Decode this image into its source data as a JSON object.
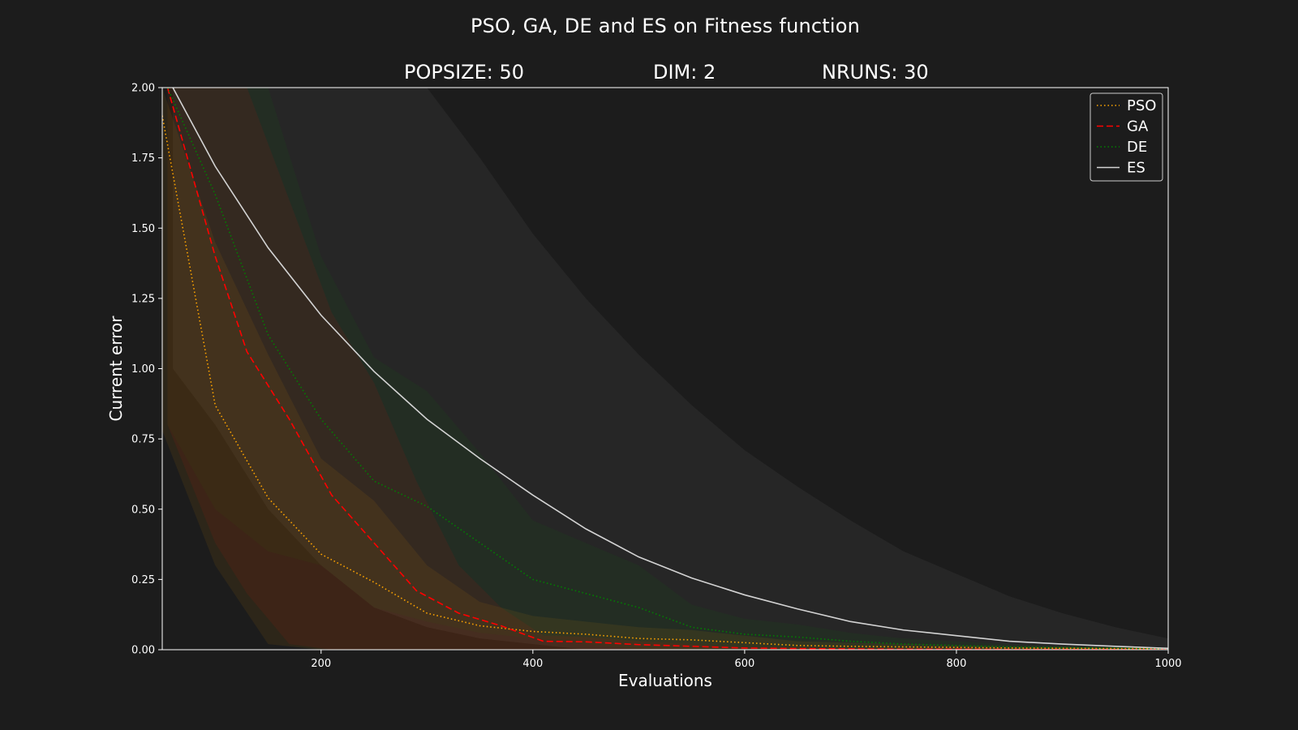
{
  "title": "PSO, GA, DE and ES on Fitness function",
  "stats": {
    "popsize": "POPSIZE: 50",
    "dim": "DIM: 2",
    "nruns": "NRUNS: 30"
  },
  "colors": {
    "background": "#1c1c1c",
    "axes": "#ffffff",
    "PSO": "#ffa500",
    "GA": "#ff0000",
    "DE": "#008000",
    "ES": "#d3d3d3"
  },
  "chart_data": {
    "type": "line",
    "xlabel": "Evaluations",
    "ylabel": "Current error",
    "xlim": [
      50,
      1000
    ],
    "ylim": [
      0,
      2.0
    ],
    "xticks": [
      200,
      400,
      600,
      800,
      1000
    ],
    "yticks": [
      0.0,
      0.25,
      0.5,
      0.75,
      1.0,
      1.25,
      1.5,
      1.75,
      2.0
    ],
    "ytick_labels": [
      "0.00",
      "0.25",
      "0.50",
      "0.75",
      "1.00",
      "1.25",
      "1.50",
      "1.75",
      "2.00"
    ],
    "grid": false,
    "legend_position": "top-right",
    "series": [
      {
        "name": "PSO",
        "style": "dotted",
        "color": "#ffa500",
        "x": [
          50,
          100,
          150,
          200,
          250,
          300,
          350,
          400,
          450,
          500,
          550,
          600,
          650,
          700,
          750,
          800,
          850,
          900,
          950,
          1000
        ],
        "y": [
          1.9,
          0.87,
          0.54,
          0.34,
          0.24,
          0.13,
          0.085,
          0.065,
          0.055,
          0.04,
          0.035,
          0.025,
          0.015,
          0.012,
          0.01,
          0.008,
          0.006,
          0.005,
          0.004,
          0.003
        ],
        "upper": [
          2.0,
          1.45,
          1.05,
          0.68,
          0.53,
          0.3,
          0.17,
          0.12,
          0.1,
          0.08,
          0.07,
          0.05,
          0.03,
          0.025,
          0.02,
          0.015,
          0.012,
          0.01,
          0.008,
          0.006
        ],
        "lower": [
          0.78,
          0.3,
          0.02,
          0.0,
          0.0,
          0.0,
          0.0,
          0.0,
          0.0,
          0.0,
          0.0,
          0.0,
          0.0,
          0.0,
          0.0,
          0.0,
          0.0,
          0.0,
          0.0,
          0.0
        ]
      },
      {
        "name": "GA",
        "style": "dashed",
        "color": "#ff0000",
        "x": [
          55,
          100,
          130,
          170,
          210,
          250,
          290,
          330,
          370,
          410,
          450,
          500,
          550,
          600,
          650,
          700,
          750,
          800,
          850,
          900,
          950,
          1000
        ],
        "y": [
          2.0,
          1.4,
          1.06,
          0.82,
          0.55,
          0.38,
          0.21,
          0.13,
          0.085,
          0.03,
          0.028,
          0.018,
          0.012,
          0.006,
          0.004,
          0.003,
          0.002,
          0.002,
          0.001,
          0.001,
          0.001,
          0.001
        ],
        "upper": [
          2.0,
          2.0,
          2.0,
          1.6,
          1.2,
          0.95,
          0.6,
          0.3,
          0.15,
          0.05,
          0.045,
          0.03,
          0.02,
          0.01,
          0.008,
          0.006,
          0.004,
          0.003,
          0.002,
          0.002,
          0.002,
          0.002
        ],
        "lower": [
          0.8,
          0.38,
          0.2,
          0.02,
          0.0,
          0.0,
          0.0,
          0.0,
          0.0,
          0.0,
          0.0,
          0.0,
          0.0,
          0.0,
          0.0,
          0.0,
          0.0,
          0.0,
          0.0,
          0.0,
          0.0,
          0.0
        ]
      },
      {
        "name": "DE",
        "style": "dotted",
        "color": "#008000",
        "x": [
          55,
          100,
          150,
          200,
          250,
          300,
          350,
          400,
          450,
          500,
          550,
          600,
          650,
          700,
          750,
          800,
          850,
          900,
          950,
          1000
        ],
        "y": [
          2.0,
          1.62,
          1.12,
          0.82,
          0.6,
          0.51,
          0.38,
          0.25,
          0.2,
          0.15,
          0.08,
          0.055,
          0.045,
          0.03,
          0.02,
          0.015,
          0.01,
          0.007,
          0.005,
          0.003
        ],
        "upper": [
          2.0,
          2.0,
          2.0,
          1.4,
          1.04,
          0.92,
          0.7,
          0.46,
          0.38,
          0.3,
          0.16,
          0.11,
          0.09,
          0.06,
          0.04,
          0.03,
          0.02,
          0.014,
          0.01,
          0.006
        ],
        "lower": [
          0.8,
          0.5,
          0.35,
          0.3,
          0.15,
          0.1,
          0.06,
          0.04,
          0.02,
          0.0,
          0.0,
          0.0,
          0.0,
          0.0,
          0.0,
          0.0,
          0.0,
          0.0,
          0.0,
          0.0
        ]
      },
      {
        "name": "ES",
        "style": "solid",
        "color": "#d3d3d3",
        "x": [
          60,
          100,
          150,
          200,
          250,
          300,
          350,
          400,
          450,
          500,
          550,
          600,
          650,
          700,
          750,
          800,
          850,
          900,
          950,
          1000
        ],
        "y": [
          2.0,
          1.72,
          1.43,
          1.19,
          0.99,
          0.82,
          0.68,
          0.55,
          0.43,
          0.33,
          0.255,
          0.195,
          0.145,
          0.1,
          0.07,
          0.05,
          0.03,
          0.02,
          0.012,
          0.005
        ],
        "upper": [
          2.0,
          2.0,
          2.0,
          2.0,
          2.0,
          2.0,
          1.75,
          1.48,
          1.25,
          1.05,
          0.87,
          0.71,
          0.58,
          0.46,
          0.35,
          0.27,
          0.19,
          0.13,
          0.08,
          0.04
        ],
        "lower": [
          1.0,
          0.8,
          0.5,
          0.3,
          0.15,
          0.08,
          0.04,
          0.02,
          0.0,
          0.0,
          0.0,
          0.0,
          0.0,
          0.0,
          0.0,
          0.0,
          0.0,
          0.0,
          0.0,
          0.0
        ]
      }
    ]
  }
}
